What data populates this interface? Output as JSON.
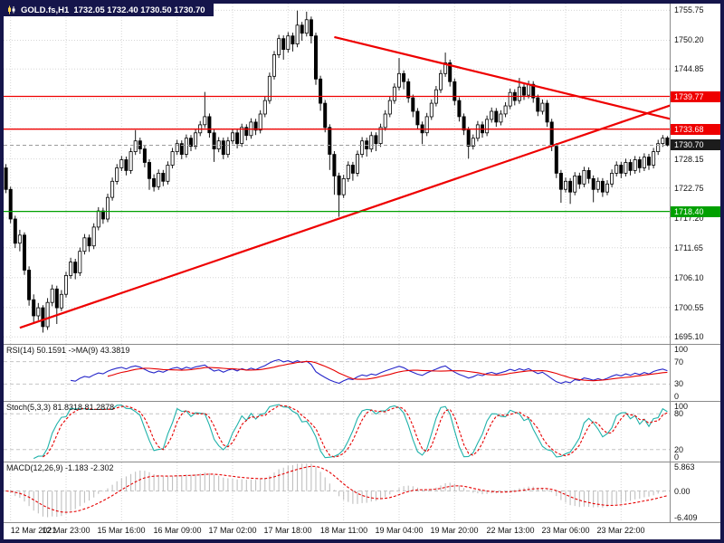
{
  "window": {
    "symbol_period": "GOLD.fs,H1",
    "ohlc": "1732.05 1732.40 1730.50 1730.70"
  },
  "colors": {
    "frame": "#15154b",
    "grid": "#d6d6d6",
    "separator": "#8a8a8a",
    "bull": "#ffffff",
    "bear": "#000000",
    "wick": "#000000",
    "level_line": "#c4c4c4"
  },
  "chart_data": {
    "type": "candlestick",
    "symbol": "GOLD.fs",
    "timeframe": "H1",
    "current": {
      "open": 1732.05,
      "high": 1732.4,
      "low": 1730.5,
      "close": 1730.7
    },
    "price_panel": {
      "ylim": [
        1693.8,
        1757.0
      ],
      "grid_prices": [
        1755.75,
        1750.2,
        1744.85,
        1739.3,
        1733.75,
        1728.15,
        1722.75,
        1717.2,
        1711.65,
        1706.1,
        1700.55,
        1695.1
      ],
      "axis_labels": [
        {
          "price": 1755.75,
          "text": "1755.75"
        },
        {
          "price": 1750.2,
          "text": "1750.20"
        },
        {
          "price": 1744.85,
          "text": "1744.85"
        },
        {
          "price": 1728.15,
          "text": "1728.15"
        },
        {
          "price": 1722.75,
          "text": "1722.75"
        },
        {
          "price": 1717.2,
          "text": "1717.20"
        },
        {
          "price": 1711.65,
          "text": "1711.65"
        },
        {
          "price": 1706.1,
          "text": "1706.10"
        },
        {
          "price": 1700.55,
          "text": "1700.55"
        },
        {
          "price": 1695.1,
          "text": "1695.10"
        }
      ],
      "price_tags": [
        {
          "price": 1739.77,
          "text": "1739.77",
          "bg": "#ee0000",
          "fg": "#ffffff",
          "line": "solid",
          "line_color": "#ee0000"
        },
        {
          "price": 1733.68,
          "text": "1733.68",
          "bg": "#ee0000",
          "fg": "#ffffff",
          "line": "solid",
          "line_color": "#ee0000"
        },
        {
          "price": 1730.7,
          "text": "1730.70",
          "bg": "#1c1c1c",
          "fg": "#ffffff",
          "line": "dash",
          "line_color": "#9a9a9a"
        },
        {
          "price": 1718.4,
          "text": "1718.40",
          "bg": "#00a000",
          "fg": "#ffffff",
          "line": "solid",
          "line_color": "#00a000"
        }
      ],
      "trendlines": [
        {
          "x1_bar": 3,
          "price1": 1696.8,
          "x2_bar": 144,
          "price2": 1738.2,
          "color": "#ee0000",
          "width": 2.2
        },
        {
          "x1_bar": 71,
          "price1": 1750.8,
          "x2_bar": 144,
          "price2": 1735.5,
          "color": "#ee0000",
          "width": 2.2
        }
      ],
      "candles": [
        [
          1726.5,
          1727.2,
          1721.8,
          1722.5
        ],
        [
          1722.5,
          1723.0,
          1716.2,
          1717.0
        ],
        [
          1717.0,
          1717.6,
          1711.6,
          1712.5
        ],
        [
          1712.5,
          1715.0,
          1711.0,
          1714.0
        ],
        [
          1714.0,
          1714.5,
          1706.6,
          1707.5
        ],
        [
          1707.5,
          1708.2,
          1700.9,
          1702.0
        ],
        [
          1702.0,
          1703.0,
          1697.8,
          1699.0
        ],
        [
          1699.0,
          1701.4,
          1698.2,
          1700.5
        ],
        [
          1700.5,
          1701.0,
          1695.9,
          1697.0
        ],
        [
          1697.0,
          1702.3,
          1696.4,
          1701.5
        ],
        [
          1701.5,
          1704.8,
          1700.8,
          1704.0
        ],
        [
          1704.0,
          1704.6,
          1697.5,
          1700.5
        ],
        [
          1700.5,
          1703.8,
          1699.9,
          1703.0
        ],
        [
          1703.0,
          1707.2,
          1702.4,
          1706.5
        ],
        [
          1706.5,
          1709.8,
          1705.9,
          1709.0
        ],
        [
          1709.0,
          1709.6,
          1705.8,
          1707.0
        ],
        [
          1707.0,
          1711.7,
          1706.4,
          1711.0
        ],
        [
          1711.0,
          1714.2,
          1710.4,
          1713.5
        ],
        [
          1713.5,
          1714.1,
          1710.9,
          1712.0
        ],
        [
          1712.0,
          1716.2,
          1711.4,
          1715.5
        ],
        [
          1715.5,
          1719.2,
          1714.9,
          1718.5
        ],
        [
          1718.5,
          1719.1,
          1716.1,
          1717.0
        ],
        [
          1717.0,
          1721.7,
          1716.4,
          1721.0
        ],
        [
          1721.0,
          1724.7,
          1720.4,
          1724.0
        ],
        [
          1724.0,
          1727.2,
          1723.4,
          1726.5
        ],
        [
          1726.5,
          1728.7,
          1725.9,
          1728.0
        ],
        [
          1728.0,
          1728.6,
          1725.1,
          1726.0
        ],
        [
          1726.0,
          1730.2,
          1725.4,
          1729.5
        ],
        [
          1729.5,
          1733.5,
          1728.9,
          1731.5
        ],
        [
          1731.5,
          1732.1,
          1729.1,
          1730.0
        ],
        [
          1730.0,
          1730.6,
          1726.6,
          1727.5
        ],
        [
          1727.5,
          1728.1,
          1722.4,
          1724.5
        ],
        [
          1724.5,
          1725.3,
          1722.1,
          1723.0
        ],
        [
          1723.0,
          1726.2,
          1722.4,
          1725.5
        ],
        [
          1725.5,
          1726.1,
          1723.1,
          1724.0
        ],
        [
          1724.0,
          1727.7,
          1723.4,
          1727.0
        ],
        [
          1727.0,
          1730.2,
          1726.4,
          1729.5
        ],
        [
          1729.5,
          1731.7,
          1728.9,
          1731.0
        ],
        [
          1731.0,
          1731.6,
          1728.1,
          1729.0
        ],
        [
          1729.0,
          1732.7,
          1728.4,
          1732.0
        ],
        [
          1732.0,
          1732.6,
          1729.6,
          1730.5
        ],
        [
          1730.5,
          1733.7,
          1729.9,
          1733.0
        ],
        [
          1733.0,
          1735.2,
          1732.4,
          1734.5
        ],
        [
          1734.5,
          1740.6,
          1733.9,
          1736.0
        ],
        [
          1736.0,
          1736.6,
          1732.1,
          1733.0
        ],
        [
          1733.0,
          1733.6,
          1727.6,
          1730.0
        ],
        [
          1730.0,
          1732.2,
          1729.4,
          1731.5
        ],
        [
          1731.5,
          1732.1,
          1728.1,
          1729.0
        ],
        [
          1729.0,
          1732.2,
          1728.4,
          1731.5
        ],
        [
          1731.5,
          1733.7,
          1730.9,
          1733.0
        ],
        [
          1733.0,
          1733.6,
          1730.1,
          1731.0
        ],
        [
          1731.0,
          1734.7,
          1730.4,
          1734.0
        ],
        [
          1734.0,
          1734.6,
          1731.6,
          1732.5
        ],
        [
          1732.5,
          1735.7,
          1731.9,
          1735.0
        ],
        [
          1735.0,
          1735.6,
          1732.6,
          1733.5
        ],
        [
          1733.5,
          1737.2,
          1732.9,
          1736.5
        ],
        [
          1736.5,
          1739.7,
          1735.9,
          1739.0
        ],
        [
          1739.0,
          1744.2,
          1738.4,
          1743.5
        ],
        [
          1743.5,
          1748.2,
          1742.9,
          1747.5
        ],
        [
          1747.5,
          1751.2,
          1746.9,
          1750.5
        ],
        [
          1750.5,
          1751.1,
          1746.6,
          1748.5
        ],
        [
          1748.5,
          1751.7,
          1747.9,
          1751.0
        ],
        [
          1751.0,
          1751.6,
          1748.1,
          1749.5
        ],
        [
          1749.5,
          1755.7,
          1748.9,
          1753.0
        ],
        [
          1753.0,
          1753.6,
          1750.1,
          1751.5
        ],
        [
          1751.5,
          1755.5,
          1750.9,
          1754.0
        ],
        [
          1754.0,
          1754.6,
          1749.6,
          1751.0
        ],
        [
          1751.0,
          1751.6,
          1741.9,
          1743.0
        ],
        [
          1743.0,
          1743.6,
          1737.1,
          1738.5
        ],
        [
          1738.5,
          1739.1,
          1733.1,
          1734.0
        ],
        [
          1734.0,
          1734.6,
          1726.1,
          1729.0
        ],
        [
          1729.0,
          1729.6,
          1721.5,
          1725.0
        ],
        [
          1725.0,
          1725.6,
          1717.4,
          1721.5
        ],
        [
          1721.5,
          1725.2,
          1720.9,
          1724.5
        ],
        [
          1724.5,
          1727.7,
          1723.9,
          1727.0
        ],
        [
          1727.0,
          1727.6,
          1724.1,
          1725.5
        ],
        [
          1725.5,
          1729.7,
          1724.9,
          1729.0
        ],
        [
          1729.0,
          1732.2,
          1728.4,
          1731.5
        ],
        [
          1731.5,
          1732.1,
          1728.6,
          1730.0
        ],
        [
          1730.0,
          1733.2,
          1729.4,
          1732.5
        ],
        [
          1732.5,
          1733.1,
          1729.6,
          1731.0
        ],
        [
          1731.0,
          1734.7,
          1730.4,
          1734.0
        ],
        [
          1734.0,
          1737.2,
          1733.4,
          1736.5
        ],
        [
          1736.5,
          1739.7,
          1735.9,
          1739.0
        ],
        [
          1739.0,
          1742.2,
          1738.4,
          1741.5
        ],
        [
          1741.5,
          1746.9,
          1740.9,
          1744.0
        ],
        [
          1744.0,
          1744.6,
          1741.1,
          1742.5
        ],
        [
          1742.5,
          1743.1,
          1738.6,
          1739.5
        ],
        [
          1739.5,
          1740.1,
          1735.9,
          1737.0
        ],
        [
          1737.0,
          1737.6,
          1733.6,
          1734.5
        ],
        [
          1734.5,
          1735.1,
          1730.9,
          1733.0
        ],
        [
          1733.0,
          1736.7,
          1732.4,
          1736.0
        ],
        [
          1736.0,
          1739.2,
          1735.4,
          1738.5
        ],
        [
          1738.5,
          1741.7,
          1737.9,
          1741.0
        ],
        [
          1741.0,
          1744.7,
          1740.4,
          1744.0
        ],
        [
          1744.0,
          1747.9,
          1743.4,
          1746.0
        ],
        [
          1746.0,
          1746.6,
          1741.6,
          1742.5
        ],
        [
          1742.5,
          1743.1,
          1738.1,
          1739.0
        ],
        [
          1739.0,
          1739.6,
          1735.1,
          1736.0
        ],
        [
          1736.0,
          1736.6,
          1732.6,
          1733.5
        ],
        [
          1733.5,
          1734.1,
          1728.2,
          1730.5
        ],
        [
          1730.5,
          1732.7,
          1729.9,
          1732.0
        ],
        [
          1732.0,
          1735.2,
          1731.4,
          1734.5
        ],
        [
          1734.5,
          1735.1,
          1732.1,
          1733.0
        ],
        [
          1733.0,
          1736.2,
          1732.4,
          1735.5
        ],
        [
          1735.5,
          1737.7,
          1734.9,
          1737.0
        ],
        [
          1737.0,
          1737.6,
          1734.1,
          1735.0
        ],
        [
          1735.0,
          1737.2,
          1734.4,
          1736.5
        ],
        [
          1736.5,
          1738.7,
          1735.9,
          1738.0
        ],
        [
          1738.0,
          1741.2,
          1737.4,
          1740.5
        ],
        [
          1740.5,
          1741.1,
          1738.1,
          1739.0
        ],
        [
          1739.0,
          1743.2,
          1738.4,
          1741.5
        ],
        [
          1741.5,
          1742.1,
          1739.1,
          1740.0
        ],
        [
          1740.0,
          1742.7,
          1739.4,
          1742.0
        ],
        [
          1742.0,
          1742.6,
          1738.6,
          1739.5
        ],
        [
          1739.5,
          1740.1,
          1736.1,
          1737.0
        ],
        [
          1737.0,
          1739.2,
          1736.4,
          1738.5
        ],
        [
          1738.5,
          1739.1,
          1734.1,
          1735.0
        ],
        [
          1735.0,
          1735.6,
          1729.6,
          1730.5
        ],
        [
          1730.5,
          1731.1,
          1724.6,
          1725.5
        ],
        [
          1725.5,
          1726.1,
          1720.0,
          1722.5
        ],
        [
          1722.5,
          1724.7,
          1721.9,
          1724.0
        ],
        [
          1724.0,
          1724.6,
          1719.8,
          1722.0
        ],
        [
          1722.0,
          1725.7,
          1721.4,
          1725.0
        ],
        [
          1725.0,
          1725.6,
          1722.6,
          1723.5
        ],
        [
          1723.5,
          1726.7,
          1722.9,
          1726.0
        ],
        [
          1726.0,
          1726.6,
          1723.6,
          1724.5
        ],
        [
          1724.5,
          1725.1,
          1720.1,
          1722.5
        ],
        [
          1722.5,
          1724.7,
          1721.9,
          1724.0
        ],
        [
          1724.0,
          1724.6,
          1721.1,
          1722.0
        ],
        [
          1722.0,
          1724.2,
          1721.4,
          1723.5
        ],
        [
          1723.5,
          1726.2,
          1722.9,
          1725.5
        ],
        [
          1725.5,
          1727.7,
          1724.9,
          1727.0
        ],
        [
          1727.0,
          1727.6,
          1724.6,
          1725.5
        ],
        [
          1725.5,
          1728.2,
          1724.9,
          1727.5
        ],
        [
          1727.5,
          1728.1,
          1725.1,
          1726.0
        ],
        [
          1726.0,
          1728.7,
          1725.4,
          1728.0
        ],
        [
          1728.0,
          1728.6,
          1725.6,
          1726.5
        ],
        [
          1726.5,
          1729.2,
          1725.9,
          1728.5
        ],
        [
          1728.5,
          1729.1,
          1726.1,
          1727.0
        ],
        [
          1727.0,
          1730.2,
          1726.4,
          1729.5
        ],
        [
          1729.5,
          1731.7,
          1728.9,
          1731.0
        ],
        [
          1731.0,
          1732.6,
          1730.4,
          1732.0
        ],
        [
          1732.05,
          1732.4,
          1730.5,
          1730.7
        ]
      ]
    },
    "x_axis": {
      "labels": [
        {
          "bar": 1,
          "text": "12 Mar 2021"
        },
        {
          "bar": 13,
          "text": "12 Mar 23:00"
        },
        {
          "bar": 25,
          "text": "15 Mar 16:00"
        },
        {
          "bar": 37,
          "text": "16 Mar 09:00"
        },
        {
          "bar": 49,
          "text": "17 Mar 02:00"
        },
        {
          "bar": 61,
          "text": "17 Mar 18:00"
        },
        {
          "bar": 73,
          "text": "18 Mar 11:00"
        },
        {
          "bar": 85,
          "text": "19 Mar 04:00"
        },
        {
          "bar": 97,
          "text": "19 Mar 20:00"
        },
        {
          "bar": 109,
          "text": "22 Mar 13:00"
        },
        {
          "bar": 121,
          "text": "23 Mar 06:00"
        },
        {
          "bar": 133,
          "text": "23 Mar 22:00"
        }
      ]
    },
    "indicator_panels": {
      "rsi": {
        "title": "RSI(14) 50.1591 ->MA(9) 43.3819",
        "params": {
          "period": 14,
          "ma_period": 9
        },
        "current": [
          50.1591,
          43.3819
        ],
        "ylim": [
          0,
          100
        ],
        "levels": [
          70,
          30
        ],
        "axis_labels": [
          {
            "v": 100,
            "text": "100"
          },
          {
            "v": 70,
            "text": "70"
          },
          {
            "v": 30,
            "text": "30"
          },
          {
            "v": 0,
            "text": "0"
          }
        ],
        "colors": {
          "main": "#2626c9",
          "signal": "#e60000"
        }
      },
      "stoch": {
        "title": "Stoch(5,3,3) 81.8318 81.2878",
        "params": {
          "k": 5,
          "d": 3,
          "slowing": 3
        },
        "current": [
          81.8318,
          81.2878
        ],
        "ylim": [
          0,
          100
        ],
        "levels": [
          80,
          20
        ],
        "axis_labels": [
          {
            "v": 100,
            "text": "100"
          },
          {
            "v": 80,
            "text": "80"
          },
          {
            "v": 20,
            "text": "20"
          },
          {
            "v": 0,
            "text": "0"
          }
        ],
        "colors": {
          "main": "#20b2aa",
          "signal": "#e60000"
        }
      },
      "macd": {
        "title": "MACD(12,26,9) -1.183 -2.302",
        "params": {
          "fast": 12,
          "slow": 26,
          "signal": 9
        },
        "current": [
          -1.183,
          -2.302
        ],
        "ylim": [
          -7.1,
          6.5
        ],
        "axis_labels": [
          {
            "v": 5.863,
            "text": "5.863"
          },
          {
            "v": 0,
            "text": "0.00"
          },
          {
            "v": -6.409,
            "text": "-6.409"
          }
        ],
        "colors": {
          "hist": "#b9b9b9",
          "signal": "#e60000"
        }
      }
    }
  }
}
